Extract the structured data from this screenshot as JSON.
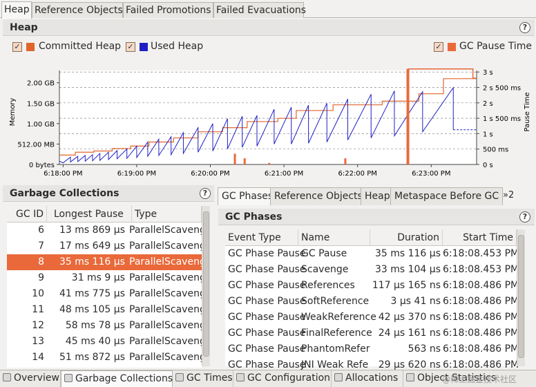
{
  "top_tabs": [
    "Heap",
    "Reference Objects",
    "Failed Promotions",
    "Failed Evacuations"
  ],
  "heap": {
    "title": "Heap",
    "legend": {
      "committed": "Committed Heap",
      "used": "Used Heap",
      "gc_pause": "GC Pause Time"
    },
    "colors": {
      "committed": "#e0642b",
      "used": "#1f1fc4",
      "pause": "#e9693a"
    },
    "chart_data": {
      "type": "line",
      "ylabel": "Memory",
      "y2label": "Pause Time",
      "y_ticks": [
        "0 bytes",
        "512.00 MB",
        "1.00 GB",
        "1.50 GB",
        "2.00 GB"
      ],
      "y2_ticks": [
        "0 s",
        "500 ms",
        "1 s",
        "1 s 500 ms",
        "2 s",
        "2 s 500 ms",
        "3 s"
      ],
      "x_ticks": [
        "6:18:00 PM",
        "6:19:00 PM",
        "6:20:00 PM",
        "6:21:00 PM",
        "6:22:00 PM",
        "6:23:00 PM"
      ],
      "x_unit": "seconds after 6:18:00 PM",
      "xlim": [
        -3,
        337
      ],
      "ylim_gb": [
        0,
        2.3
      ],
      "y2lim_s": [
        0,
        3.05
      ],
      "series": [
        {
          "name": "Committed Heap",
          "unit": "GB",
          "points": [
            [
              -3,
              0.23
            ],
            [
              10,
              0.23
            ],
            [
              10,
              0.3
            ],
            [
              25,
              0.3
            ],
            [
              25,
              0.33
            ],
            [
              40,
              0.33
            ],
            [
              40,
              0.39
            ],
            [
              55,
              0.39
            ],
            [
              55,
              0.45
            ],
            [
              70,
              0.45
            ],
            [
              70,
              0.55
            ],
            [
              90,
              0.55
            ],
            [
              90,
              0.65
            ],
            [
              110,
              0.65
            ],
            [
              110,
              0.8
            ],
            [
              130,
              0.8
            ],
            [
              130,
              0.9
            ],
            [
              150,
              0.9
            ],
            [
              150,
              1.05
            ],
            [
              175,
              1.05
            ],
            [
              175,
              1.13
            ],
            [
              190,
              1.13
            ],
            [
              190,
              1.32
            ],
            [
              220,
              1.32
            ],
            [
              220,
              1.46
            ],
            [
              260,
              1.46
            ],
            [
              260,
              1.55
            ],
            [
              290,
              1.55
            ],
            [
              290,
              1.73
            ],
            [
              310,
              1.73
            ],
            [
              310,
              2.1
            ],
            [
              337,
              2.1
            ]
          ]
        },
        {
          "name": "Used Heap",
          "unit": "GB",
          "points": [
            [
              -3,
              0.08
            ],
            [
              0,
              0.04
            ],
            [
              6,
              0.18
            ],
            [
              6,
              0.06
            ],
            [
              12,
              0.2
            ],
            [
              12,
              0.07
            ],
            [
              18,
              0.22
            ],
            [
              18,
              0.08
            ],
            [
              24,
              0.24
            ],
            [
              24,
              0.09
            ],
            [
              30,
              0.27
            ],
            [
              30,
              0.1
            ],
            [
              37,
              0.3
            ],
            [
              37,
              0.12
            ],
            [
              44,
              0.34
            ],
            [
              44,
              0.14
            ],
            [
              52,
              0.38
            ],
            [
              52,
              0.15
            ],
            [
              60,
              0.45
            ],
            [
              60,
              0.17
            ],
            [
              69,
              0.55
            ],
            [
              69,
              0.2
            ],
            [
              78,
              0.62
            ],
            [
              78,
              0.22
            ],
            [
              88,
              0.68
            ],
            [
              88,
              0.24
            ],
            [
              98,
              0.78
            ],
            [
              98,
              0.27
            ],
            [
              110,
              0.9
            ],
            [
              110,
              0.3
            ],
            [
              122,
              1.0
            ],
            [
              122,
              0.33
            ],
            [
              134,
              1.12
            ],
            [
              134,
              0.38
            ],
            [
              146,
              1.18
            ],
            [
              146,
              0.42
            ],
            [
              158,
              1.2
            ],
            [
              158,
              0.45
            ],
            [
              172,
              1.35
            ],
            [
              172,
              0.5
            ],
            [
              186,
              1.4
            ],
            [
              186,
              0.5
            ],
            [
              200,
              1.45
            ],
            [
              200,
              0.52
            ],
            [
              215,
              1.5
            ],
            [
              215,
              0.55
            ],
            [
              232,
              1.6
            ],
            [
              232,
              0.6
            ],
            [
              251,
              1.72
            ],
            [
              251,
              0.65
            ],
            [
              270,
              1.8
            ],
            [
              270,
              0.7
            ],
            [
              293,
              1.78
            ],
            [
              293,
              1.4
            ],
            [
              293,
              0.8
            ],
            [
              318,
              1.88
            ],
            [
              318,
              0.85
            ],
            [
              337,
              0.85
            ]
          ],
          "dashed_from": 318
        },
        {
          "name": "GC Pause Time",
          "unit": "s",
          "points": [
            [
              140,
              0.35
            ],
            [
              148,
              0.2
            ],
            [
              168,
              0.05
            ],
            [
              230,
              0.2
            ],
            [
              281,
              3.1
            ],
            [
              334,
              2.8
            ]
          ]
        }
      ]
    }
  },
  "gc_table": {
    "title": "Garbage Collections",
    "columns": [
      "GC ID",
      "Longest Pause",
      "Type"
    ],
    "rows": [
      {
        "id": "6",
        "pause": "13 ms 869 μs",
        "type": "ParallelScaveng"
      },
      {
        "id": "7",
        "pause": "17 ms 649 μs",
        "type": "ParallelScaveng"
      },
      {
        "id": "8",
        "pause": "35 ms 116 μs",
        "type": "ParallelScaveng",
        "selected": true
      },
      {
        "id": "9",
        "pause": "31 ms 9 μs",
        "type": "ParallelScaveng"
      },
      {
        "id": "10",
        "pause": "41 ms 775 μs",
        "type": "ParallelScaveng"
      },
      {
        "id": "11",
        "pause": "48 ms 105 μs",
        "type": "ParallelScaveng"
      },
      {
        "id": "12",
        "pause": "58 ms 78 μs",
        "type": "ParallelScaveng"
      },
      {
        "id": "13",
        "pause": "45 ms 40 μs",
        "type": "ParallelScaveng"
      },
      {
        "id": "14",
        "pause": "51 ms 872 μs",
        "type": "ParallelScaveng"
      }
    ]
  },
  "sub_tabs": [
    "GC Phases",
    "Reference Objects",
    "Heap",
    "Metaspace Before GC"
  ],
  "sub_tab_overflow": "»2",
  "phases": {
    "title": "GC Phases",
    "columns": [
      "Event Type",
      "Name",
      "Duration",
      "Start Time"
    ],
    "rows": [
      {
        "event": "GC Phase Pause",
        "name": "GC Pause",
        "duration": "35 ms 116 μs",
        "start": "6:18:08.453 PM"
      },
      {
        "event": "GC Phase Pause",
        "name": "Scavenge",
        "duration": "33 ms 104 μs",
        "start": "6:18:08.453 PM"
      },
      {
        "event": "GC Phase Pause",
        "name": "References",
        "duration": "117 μs 165 ns",
        "start": "6:18:08.486 PM"
      },
      {
        "event": "GC Phase Pause",
        "name": "SoftReference",
        "duration": "3 μs 41 ns",
        "start": "6:18:08.486 PM"
      },
      {
        "event": "GC Phase Pause",
        "name": "WeakReference",
        "duration": "42 μs 370 ns",
        "start": "6:18:08.486 PM"
      },
      {
        "event": "GC Phase Pause",
        "name": "FinalReference",
        "duration": "24 μs 161 ns",
        "start": "6:18:08.486 PM"
      },
      {
        "event": "GC Phase Pause",
        "name": "PhantomRefer",
        "duration": "563 ns",
        "start": "6:18:08.486 PM"
      },
      {
        "event": "GC Phase Pause",
        "name": "JNI Weak Refe",
        "duration": "29 μs 620 ns",
        "start": "6:18:08.486 PM"
      }
    ]
  },
  "bottom_tabs": [
    "Overview",
    "Garbage Collections",
    "GC Times",
    "GC Configuration",
    "Allocations",
    "Object Statistics"
  ],
  "watermark": "@稀土掘金技术社区"
}
